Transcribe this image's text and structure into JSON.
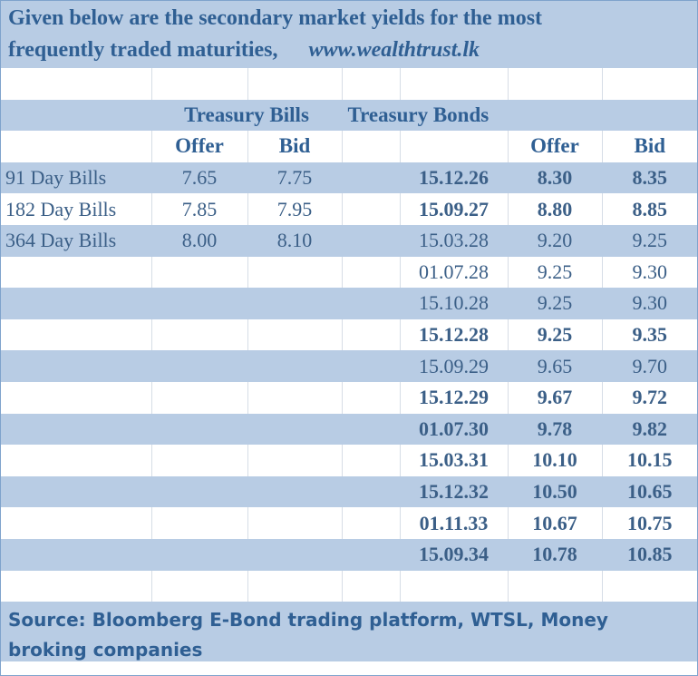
{
  "header": {
    "line1": "Given below are the secondary market yields for the most",
    "line2": "frequently traded maturities,",
    "url": "www.wealthtrust.lk"
  },
  "groups": {
    "bills": "Treasury Bills",
    "bonds": "Treasury Bonds"
  },
  "columns": {
    "bills_offer": "Offer",
    "bills_bid": "Bid",
    "bonds_offer": "Offer",
    "bonds_bid": "Bid"
  },
  "bills": [
    {
      "name": "91 Day Bills",
      "offer": "7.65",
      "bid": "7.75"
    },
    {
      "name": "182 Day Bills",
      "offer": "7.85",
      "bid": "7.95"
    },
    {
      "name": "364 Day Bills",
      "offer": "8.00",
      "bid": "8.10"
    }
  ],
  "bonds": [
    {
      "maturity": "15.12.26",
      "offer": "8.30",
      "bid": "8.35",
      "bold": true
    },
    {
      "maturity": "15.09.27",
      "offer": "8.80",
      "bid": "8.85",
      "bold": true
    },
    {
      "maturity": "15.03.28",
      "offer": "9.20",
      "bid": "9.25",
      "bold": false
    },
    {
      "maturity": "01.07.28",
      "offer": "9.25",
      "bid": "9.30",
      "bold": false
    },
    {
      "maturity": "15.10.28",
      "offer": "9.25",
      "bid": "9.30",
      "bold": false
    },
    {
      "maturity": "15.12.28",
      "offer": "9.25",
      "bid": "9.35",
      "bold": true
    },
    {
      "maturity": "15.09.29",
      "offer": "9.65",
      "bid": "9.70",
      "bold": false
    },
    {
      "maturity": "15.12.29",
      "offer": "9.67",
      "bid": "9.72",
      "bold": true
    },
    {
      "maturity": "01.07.30",
      "offer": "9.78",
      "bid": "9.82",
      "bold": true
    },
    {
      "maturity": "15.03.31",
      "offer": "10.10",
      "bid": "10.15",
      "bold": true
    },
    {
      "maturity": "15.12.32",
      "offer": "10.50",
      "bid": "10.65",
      "bold": true
    },
    {
      "maturity": "01.11.33",
      "offer": "10.67",
      "bid": "10.75",
      "bold": true
    },
    {
      "maturity": "15.09.34",
      "offer": "10.78",
      "bid": "10.85",
      "bold": true
    }
  ],
  "footer": {
    "source": "Source: Bloomberg E-Bond trading platform, WTSL, Money broking companies"
  },
  "colors": {
    "band": "#b8cce4",
    "text": "#3b5f87",
    "heading": "#2f5f93"
  }
}
